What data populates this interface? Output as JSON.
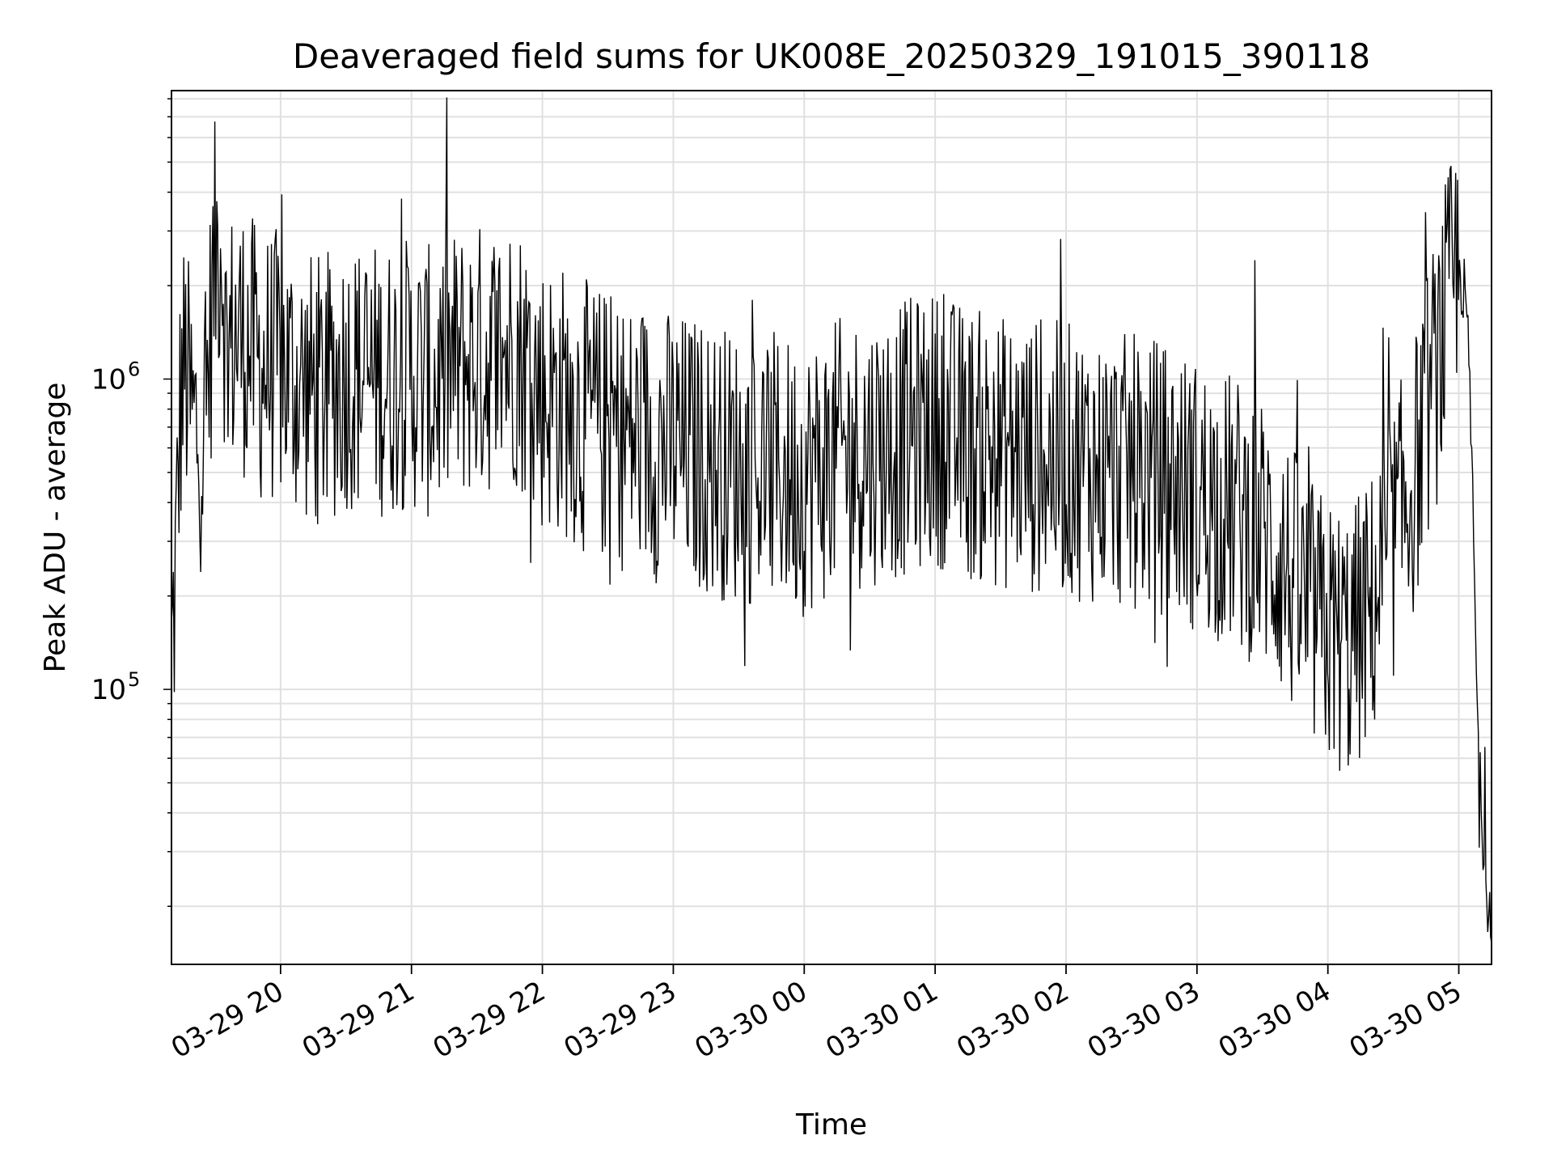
{
  "chart_data": {
    "type": "line",
    "title": "Deaveraged field sums for UK008E_20250329_191015_390118",
    "xlabel": "Time",
    "ylabel": "Peak ADU - average",
    "yscale": "log",
    "grid": "both",
    "line_color": "#000000",
    "grid_color": "#e0e0e0",
    "xlim": [
      "2025-03-29 19:10",
      "2025-03-30 05:15"
    ],
    "ylim": [
      13000,
      8500000
    ],
    "x_ticks": [
      "03-29 20",
      "03-29 21",
      "03-29 22",
      "03-29 23",
      "03-30 00",
      "03-30 01",
      "03-30 02",
      "03-30 03",
      "03-30 04",
      "03-30 05"
    ],
    "y_ticks": [
      {
        "base": "10",
        "exp": "5",
        "value": 100000
      },
      {
        "base": "10",
        "exp": "6",
        "value": 1000000
      }
    ],
    "series": [
      {
        "x": [
          "2025-03-29 19:10",
          "2025-03-29 19:12",
          "2025-03-29 19:14",
          "2025-03-29 19:16",
          "2025-03-29 19:20",
          "2025-03-29 19:25",
          "2025-03-29 19:30",
          "2025-03-29 19:33",
          "2025-03-29 19:35",
          "2025-03-29 19:40",
          "2025-03-29 19:45",
          "2025-03-29 19:50",
          "2025-03-29 20:00",
          "2025-03-29 20:10",
          "2025-03-29 20:20",
          "2025-03-29 20:30",
          "2025-03-29 20:40",
          "2025-03-29 20:50",
          "2025-03-29 21:00",
          "2025-03-29 21:10",
          "2025-03-29 21:20",
          "2025-03-29 21:30",
          "2025-03-29 21:40",
          "2025-03-29 21:48",
          "2025-03-29 22:00",
          "2025-03-29 22:10",
          "2025-03-29 22:20",
          "2025-03-29 22:30",
          "2025-03-29 22:40",
          "2025-03-29 22:50",
          "2025-03-29 23:00",
          "2025-03-29 23:15",
          "2025-03-29 23:30",
          "2025-03-29 23:45",
          "2025-03-30 00:00",
          "2025-03-30 00:15",
          "2025-03-30 00:30",
          "2025-03-30 00:45",
          "2025-03-30 01:00",
          "2025-03-30 01:15",
          "2025-03-30 01:30",
          "2025-03-30 01:45",
          "2025-03-30 02:00",
          "2025-03-30 02:15",
          "2025-03-30 02:30",
          "2025-03-30 02:45",
          "2025-03-30 03:00",
          "2025-03-30 03:15",
          "2025-03-30 03:30",
          "2025-03-30 03:40",
          "2025-03-30 03:50",
          "2025-03-30 04:00",
          "2025-03-30 04:10",
          "2025-03-30 04:20",
          "2025-03-30 04:30",
          "2025-03-30 04:40",
          "2025-03-30 04:45",
          "2025-03-30 04:50",
          "2025-03-30 04:55",
          "2025-03-30 05:00",
          "2025-03-30 05:03",
          "2025-03-30 05:05",
          "2025-03-30 05:07",
          "2025-03-30 05:09",
          "2025-03-30 05:11",
          "2025-03-30 05:13",
          "2025-03-30 05:15"
        ],
        "y": [
          120000,
          250000,
          800000,
          1100000,
          700000,
          650000,
          2500000,
          3000000,
          1200000,
          1400000,
          1300000,
          1100000,
          1100000,
          950000,
          900000,
          1050000,
          1000000,
          1000000,
          1050000,
          950000,
          1100000,
          1150000,
          1200000,
          1250000,
          900000,
          850000,
          750000,
          700000,
          650000,
          620000,
          600000,
          560000,
          520000,
          510000,
          480000,
          560000,
          600000,
          640000,
          700000,
          620000,
          580000,
          560000,
          550000,
          520000,
          500000,
          480000,
          420000,
          380000,
          320000,
          250000,
          180000,
          150000,
          140000,
          180000,
          300000,
          500000,
          800000,
          1100000,
          1700000,
          2300000,
          1800000,
          1000000,
          250000,
          60000,
          35000,
          22000,
          20000
        ]
      }
    ]
  }
}
